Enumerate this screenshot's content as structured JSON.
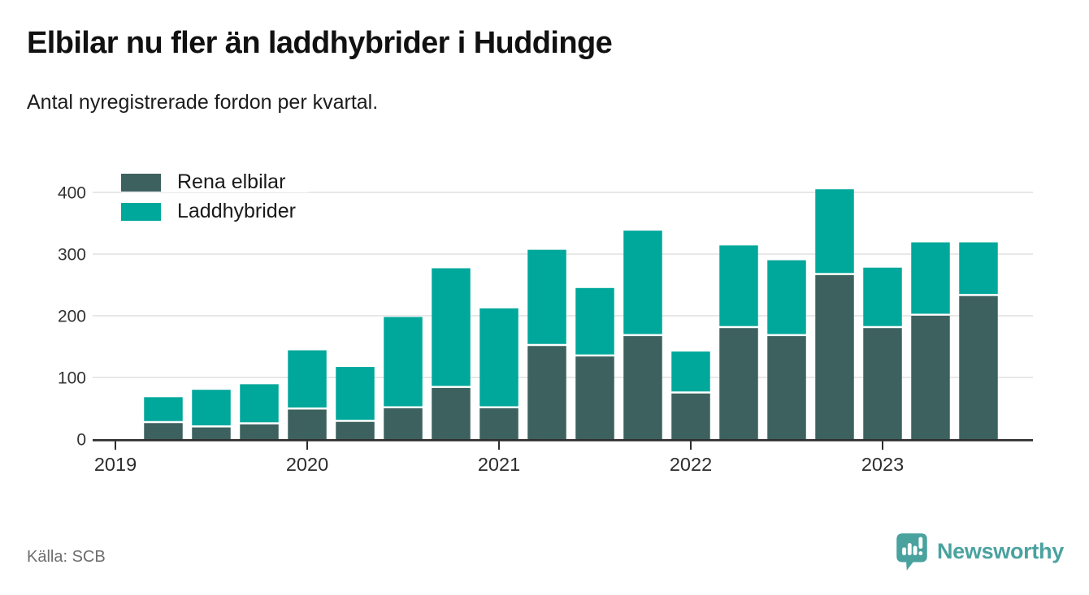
{
  "header": {
    "title": "Elbilar nu fler än laddhybrider i Huddinge",
    "subtitle": "Antal nyregistrerade fordon per kvartal."
  },
  "chart_data": {
    "type": "bar",
    "stacked": true,
    "x": [
      "2019 Q2",
      "2019 Q3",
      "2019 Q4",
      "2020 Q1",
      "2020 Q2",
      "2020 Q3",
      "2020 Q4",
      "2021 Q1",
      "2021 Q2",
      "2021 Q3",
      "2021 Q4",
      "2022 Q1",
      "2022 Q2",
      "2022 Q3",
      "2022 Q4",
      "2023 Q1",
      "2023 Q2",
      "2023 Q3"
    ],
    "series": [
      {
        "name": "Rena elbilar",
        "color": "#3d615e",
        "values": [
          26,
          19,
          24,
          48,
          28,
          50,
          83,
          50,
          151,
          134,
          167,
          74,
          180,
          167,
          266,
          180,
          200,
          232
        ]
      },
      {
        "name": "Laddhybrider",
        "color": "#00a79b",
        "values": [
          42,
          61,
          65,
          96,
          89,
          148,
          194,
          162,
          156,
          111,
          171,
          68,
          134,
          123,
          139,
          98,
          119,
          87
        ]
      }
    ],
    "title": "Elbilar nu fler än laddhybrider i Huddinge",
    "xlabel": "",
    "ylabel": "",
    "x_tick_labels": [
      "2019",
      "2020",
      "2021",
      "2022",
      "2023"
    ],
    "y_ticks": [
      0,
      100,
      200,
      300,
      400
    ],
    "y_tick_labels": [
      "0",
      "100",
      "200",
      "300",
      "400"
    ],
    "ylim": [
      0,
      420
    ],
    "grid": true,
    "legend_position": "top-left"
  },
  "footer": {
    "source": "Källa: SCB",
    "brand": "Newsworthy"
  },
  "icons": {
    "brand_icon": "newsworthy-speech-bubble-chart-icon"
  },
  "colors": {
    "axis": "#2d2d2d",
    "grid": "#e0e0e0",
    "tick_text": "#333333",
    "brand": "#4aa29f",
    "muted_text": "#6e6e6e"
  }
}
